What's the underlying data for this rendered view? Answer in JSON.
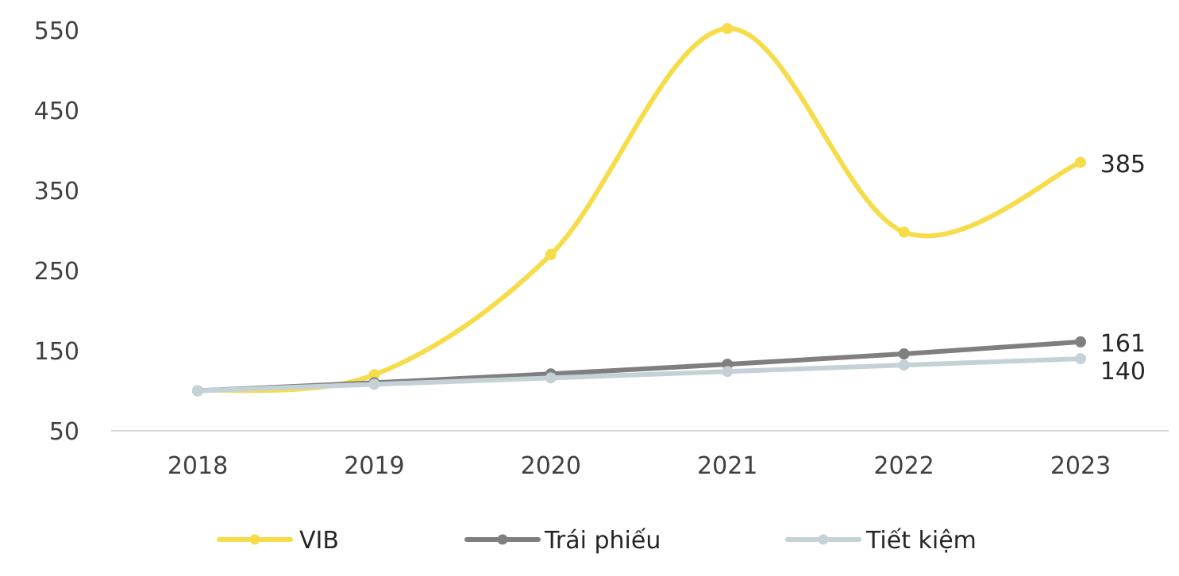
{
  "chart_data": {
    "type": "line",
    "title": "",
    "xlabel": "",
    "ylabel": "",
    "categories": [
      "2018",
      "2019",
      "2020",
      "2021",
      "2022",
      "2023"
    ],
    "ylim": [
      50,
      550
    ],
    "yticks": [
      50,
      150,
      250,
      350,
      450,
      550
    ],
    "grid": false,
    "legend_position": "bottom",
    "series": [
      {
        "name": "VIB",
        "values": [
          100,
          120,
          270,
          552,
          298,
          385
        ],
        "color": "#F7DC4A",
        "end_label": "385",
        "smooth": true
      },
      {
        "name": "Trái phiếu",
        "values": [
          100,
          110,
          121,
          133,
          146,
          161
        ],
        "color": "#7F7F7F",
        "end_label": "161",
        "smooth": false
      },
      {
        "name": "Tiết kiệm",
        "values": [
          100,
          108,
          116,
          124,
          132,
          140
        ],
        "color": "#C4D2D7",
        "end_label": "140",
        "smooth": false
      }
    ]
  }
}
